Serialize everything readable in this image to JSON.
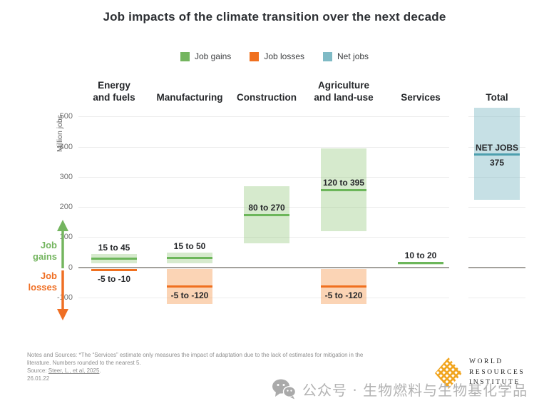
{
  "title": "Job impacts of the climate transition over the next decade",
  "legend": [
    {
      "label": "Job gains",
      "color": "#74b55f"
    },
    {
      "label": "Job losses",
      "color": "#f0701f"
    },
    {
      "label": "Net jobs",
      "color": "#7fbac5"
    }
  ],
  "axis_label": "Million jobs",
  "annotations": {
    "gains": "Job\ngains",
    "losses": "Job\nlosses"
  },
  "chart_data": {
    "type": "range-bar",
    "unit": "Million jobs",
    "axis": {
      "ticks": [
        500,
        400,
        300,
        200,
        100,
        0,
        -100
      ],
      "ylim": [
        -160,
        545
      ]
    },
    "categories": [
      {
        "name": "Energy and fuels",
        "header": "Energy\nand fuels",
        "gains": {
          "min": 15,
          "max": 45,
          "mid": 30,
          "label": "15 to 45"
        },
        "losses": {
          "min": -10,
          "max": -5,
          "mid": -7.5,
          "label": "-5 to -10"
        }
      },
      {
        "name": "Manufacturing",
        "header": "Manufacturing",
        "gains": {
          "min": 15,
          "max": 50,
          "mid": 32.5,
          "label": "15 to 50"
        },
        "losses": {
          "min": -120,
          "max": -5,
          "mid": -62.5,
          "label": "-5 to -120"
        }
      },
      {
        "name": "Construction",
        "header": "Construction",
        "gains": {
          "min": 80,
          "max": 270,
          "mid": 175,
          "label": "80 to 270"
        }
      },
      {
        "name": "Agriculture and land-use",
        "header": "Agriculture\nand land-use",
        "gains": {
          "min": 120,
          "max": 395,
          "mid": 257.5,
          "label": "120 to 395"
        },
        "losses": {
          "min": -120,
          "max": -5,
          "mid": -62.5,
          "label": "-5 to -120"
        }
      },
      {
        "name": "Services",
        "header": "Services",
        "gains": {
          "min": 10,
          "max": 20,
          "mid": 15,
          "label": "10 to 20"
        }
      }
    ],
    "total": {
      "name": "Total",
      "header": "Total",
      "band": {
        "min": 225,
        "max": 530
      },
      "line": 375,
      "label": "NET JOBS",
      "value": "375"
    },
    "colors": {
      "gain_line": "#6cb65a",
      "gain_band": "#d9e9ce",
      "loss_line": "#f0701f",
      "loss_band": "#fad5b9",
      "net_line": "#4d9fae",
      "net_band": "#d6e8ea",
      "zero_line": "#a3a19c",
      "gridline": "#ececec"
    }
  },
  "notes": {
    "line1": "Notes and Sources: *The “Services” estimate only measures the impact of adaptation due to the lack of estimates for mitigation in the",
    "line2": "literature. Numbers rounded to the nearest 5.",
    "source_prefix": "Source: ",
    "source_link": "Steer, L., et al, 2025",
    "source_suffix": ".",
    "date": "26.01.22"
  },
  "logo": {
    "line1": "WORLD",
    "line2": "RESOURCES",
    "line3": "INSTITUTE",
    "color": "#f1a51f"
  },
  "watermark": "公众号 · 生物燃料与生物基化学品"
}
